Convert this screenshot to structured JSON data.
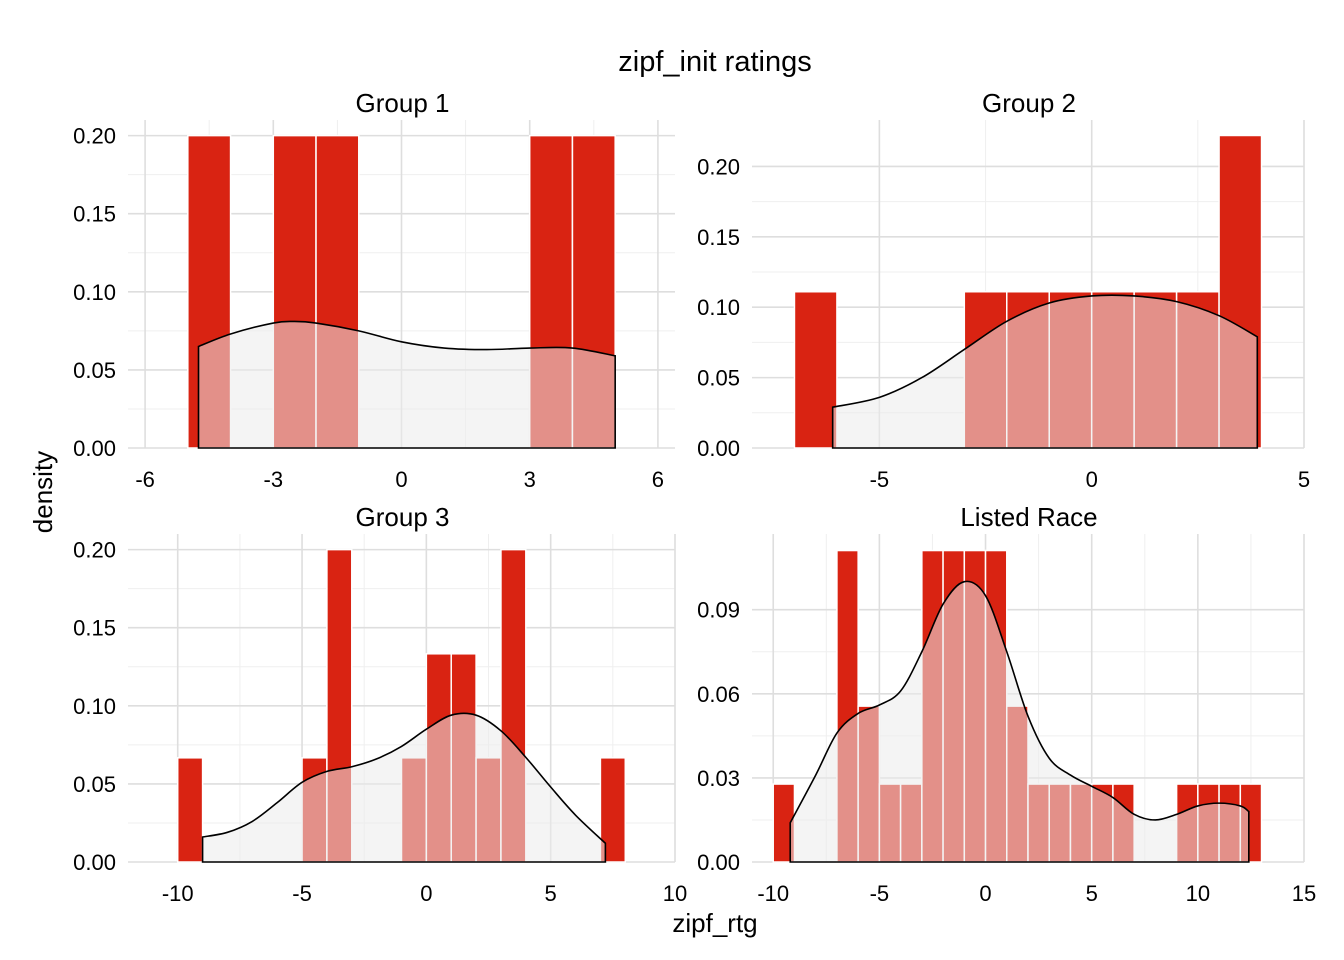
{
  "figure": {
    "title": "zipf_init ratings",
    "xlabel": "zipf_rtg",
    "ylabel": "density"
  },
  "colors": {
    "bar": "#D92312",
    "density_fill": "#EBEBEB",
    "density_line": "#000000",
    "grid": "#DEDEDE"
  },
  "chart_data": [
    {
      "type": "histogram",
      "title": "Group 1",
      "xlim": [
        -6.4,
        6.4
      ],
      "ylim": [
        0,
        0.21
      ],
      "xticks": [
        -6,
        -3,
        0,
        3,
        6
      ],
      "yticks": [
        0.0,
        0.05,
        0.1,
        0.15,
        0.2
      ],
      "ytick_labels": [
        "0.00",
        "0.05",
        "0.10",
        "0.15",
        "0.20"
      ],
      "bins": [
        {
          "x0": -5.0,
          "x1": -4.0,
          "density": 0.2
        },
        {
          "x0": -3.0,
          "x1": -2.0,
          "density": 0.2
        },
        {
          "x0": -2.0,
          "x1": -1.0,
          "density": 0.2
        },
        {
          "x0": 3.0,
          "x1": 4.0,
          "density": 0.2
        },
        {
          "x0": 4.0,
          "x1": 5.0,
          "density": 0.2
        }
      ],
      "density_curve": [
        [
          -4.75,
          0.065
        ],
        [
          -4.0,
          0.073
        ],
        [
          -3.0,
          0.08
        ],
        [
          -2.5,
          0.081
        ],
        [
          -2.0,
          0.08
        ],
        [
          -1.0,
          0.075
        ],
        [
          0.0,
          0.068
        ],
        [
          1.0,
          0.064
        ],
        [
          2.0,
          0.063
        ],
        [
          3.0,
          0.064
        ],
        [
          4.0,
          0.064
        ],
        [
          5.0,
          0.059
        ]
      ]
    },
    {
      "type": "histogram",
      "title": "Group 2",
      "xlim": [
        -8.0,
        5.0
      ],
      "ylim": [
        0,
        0.233
      ],
      "xticks": [
        -5,
        0,
        5
      ],
      "yticks": [
        0.0,
        0.05,
        0.1,
        0.15,
        0.2
      ],
      "ytick_labels": [
        "0.00",
        "0.05",
        "0.10",
        "0.15",
        "0.20"
      ],
      "bins": [
        {
          "x0": -7.0,
          "x1": -6.0,
          "density": 0.111
        },
        {
          "x0": -3.0,
          "x1": -2.0,
          "density": 0.111
        },
        {
          "x0": -2.0,
          "x1": -1.0,
          "density": 0.111
        },
        {
          "x0": -1.0,
          "x1": 0.0,
          "density": 0.111
        },
        {
          "x0": 0.0,
          "x1": 1.0,
          "density": 0.111
        },
        {
          "x0": 1.0,
          "x1": 2.0,
          "density": 0.111
        },
        {
          "x0": 2.0,
          "x1": 3.0,
          "density": 0.111
        },
        {
          "x0": 3.0,
          "x1": 4.0,
          "density": 0.222
        }
      ],
      "density_curve": [
        [
          -6.1,
          0.029
        ],
        [
          -5.0,
          0.036
        ],
        [
          -4.0,
          0.05
        ],
        [
          -3.0,
          0.07
        ],
        [
          -2.0,
          0.09
        ],
        [
          -1.0,
          0.103
        ],
        [
          0.0,
          0.108
        ],
        [
          1.0,
          0.108
        ],
        [
          2.0,
          0.104
        ],
        [
          3.0,
          0.094
        ],
        [
          3.9,
          0.079
        ]
      ]
    },
    {
      "type": "histogram",
      "title": "Group 3",
      "xlim": [
        -12.0,
        10.0
      ],
      "ylim": [
        0,
        0.21
      ],
      "xticks": [
        -10,
        -5,
        0,
        5,
        10
      ],
      "yticks": [
        0.0,
        0.05,
        0.1,
        0.15,
        0.2
      ],
      "ytick_labels": [
        "0.00",
        "0.05",
        "0.10",
        "0.15",
        "0.20"
      ],
      "bins": [
        {
          "x0": -10.0,
          "x1": -9.0,
          "density": 0.0667
        },
        {
          "x0": -5.0,
          "x1": -4.0,
          "density": 0.0667
        },
        {
          "x0": -4.0,
          "x1": -3.0,
          "density": 0.2
        },
        {
          "x0": -1.0,
          "x1": 0.0,
          "density": 0.0667
        },
        {
          "x0": 0.0,
          "x1": 1.0,
          "density": 0.1333
        },
        {
          "x0": 1.0,
          "x1": 2.0,
          "density": 0.1333
        },
        {
          "x0": 2.0,
          "x1": 3.0,
          "density": 0.0667
        },
        {
          "x0": 3.0,
          "x1": 4.0,
          "density": 0.2
        },
        {
          "x0": 7.0,
          "x1": 8.0,
          "density": 0.0667
        }
      ],
      "density_curve": [
        [
          -9.0,
          0.016
        ],
        [
          -8.0,
          0.019
        ],
        [
          -7.0,
          0.026
        ],
        [
          -6.0,
          0.038
        ],
        [
          -5.0,
          0.051
        ],
        [
          -4.0,
          0.058
        ],
        [
          -3.0,
          0.061
        ],
        [
          -2.0,
          0.066
        ],
        [
          -1.0,
          0.074
        ],
        [
          0.0,
          0.085
        ],
        [
          1.0,
          0.094
        ],
        [
          2.0,
          0.094
        ],
        [
          3.0,
          0.084
        ],
        [
          4.0,
          0.067
        ],
        [
          5.0,
          0.048
        ],
        [
          6.0,
          0.03
        ],
        [
          7.2,
          0.012
        ]
      ]
    },
    {
      "type": "histogram",
      "title": "Listed Race",
      "xlim": [
        -11.0,
        15.0
      ],
      "ylim": [
        0,
        0.117
      ],
      "xticks": [
        -10,
        -5,
        0,
        5,
        10,
        15
      ],
      "yticks": [
        0.0,
        0.03,
        0.06,
        0.09
      ],
      "ytick_labels": [
        "0.00",
        "0.03",
        "0.06",
        "0.09"
      ],
      "bins": [
        {
          "x0": -10.0,
          "x1": -9.0,
          "density": 0.0278
        },
        {
          "x0": -7.0,
          "x1": -6.0,
          "density": 0.1111
        },
        {
          "x0": -6.0,
          "x1": -5.0,
          "density": 0.0556
        },
        {
          "x0": -5.0,
          "x1": -4.0,
          "density": 0.0278
        },
        {
          "x0": -4.0,
          "x1": -3.0,
          "density": 0.0278
        },
        {
          "x0": -3.0,
          "x1": -2.0,
          "density": 0.1111
        },
        {
          "x0": -2.0,
          "x1": -1.0,
          "density": 0.1111
        },
        {
          "x0": -1.0,
          "x1": 0.0,
          "density": 0.1111
        },
        {
          "x0": 0.0,
          "x1": 1.0,
          "density": 0.1111
        },
        {
          "x0": 1.0,
          "x1": 2.0,
          "density": 0.0556
        },
        {
          "x0": 2.0,
          "x1": 3.0,
          "density": 0.0278
        },
        {
          "x0": 3.0,
          "x1": 4.0,
          "density": 0.0278
        },
        {
          "x0": 4.0,
          "x1": 5.0,
          "density": 0.0278
        },
        {
          "x0": 5.0,
          "x1": 6.0,
          "density": 0.0278
        },
        {
          "x0": 6.0,
          "x1": 7.0,
          "density": 0.0278
        },
        {
          "x0": 9.0,
          "x1": 10.0,
          "density": 0.0278
        },
        {
          "x0": 10.0,
          "x1": 11.0,
          "density": 0.0278
        },
        {
          "x0": 11.0,
          "x1": 12.0,
          "density": 0.0278
        },
        {
          "x0": 12.0,
          "x1": 13.0,
          "density": 0.0278
        }
      ],
      "density_curve": [
        [
          -9.2,
          0.014
        ],
        [
          -8.0,
          0.031
        ],
        [
          -7.0,
          0.046
        ],
        [
          -6.0,
          0.053
        ],
        [
          -5.0,
          0.056
        ],
        [
          -4.0,
          0.061
        ],
        [
          -3.0,
          0.075
        ],
        [
          -2.0,
          0.092
        ],
        [
          -1.0,
          0.1
        ],
        [
          0.0,
          0.095
        ],
        [
          1.0,
          0.075
        ],
        [
          2.0,
          0.052
        ],
        [
          3.0,
          0.037
        ],
        [
          4.0,
          0.031
        ],
        [
          5.0,
          0.027
        ],
        [
          6.0,
          0.023
        ],
        [
          7.0,
          0.017
        ],
        [
          8.0,
          0.015
        ],
        [
          9.0,
          0.017
        ],
        [
          10.0,
          0.02
        ],
        [
          11.0,
          0.021
        ],
        [
          12.0,
          0.02
        ],
        [
          12.4,
          0.018
        ]
      ]
    }
  ]
}
